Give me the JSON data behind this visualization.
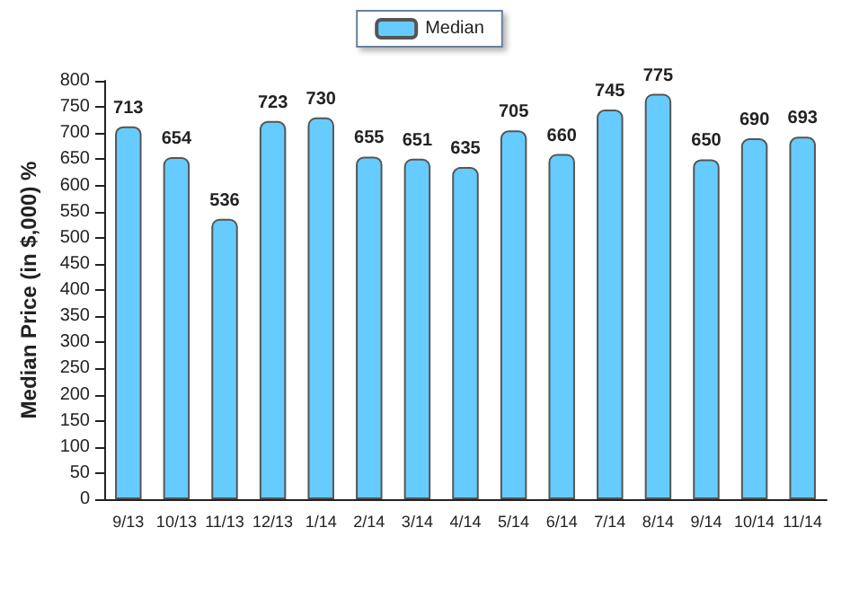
{
  "chart_data": {
    "type": "bar",
    "ylabel": "Median Price (in $,000) %",
    "categories": [
      "9/13",
      "10/13",
      "11/13",
      "12/13",
      "1/14",
      "2/14",
      "3/14",
      "4/14",
      "5/14",
      "6/14",
      "7/14",
      "8/14",
      "9/14",
      "10/14",
      "11/14"
    ],
    "series": [
      {
        "name": "Median",
        "color": "#66ccff",
        "values": [
          713,
          654,
          536,
          723,
          730,
          655,
          651,
          635,
          705,
          660,
          745,
          775,
          650,
          690,
          693
        ]
      }
    ],
    "ylim": [
      0,
      800
    ],
    "yticks": [
      0,
      50,
      100,
      150,
      200,
      250,
      300,
      350,
      400,
      450,
      500,
      550,
      600,
      650,
      700,
      750,
      800
    ],
    "data_labels": true,
    "grid": false,
    "legend": "top"
  }
}
